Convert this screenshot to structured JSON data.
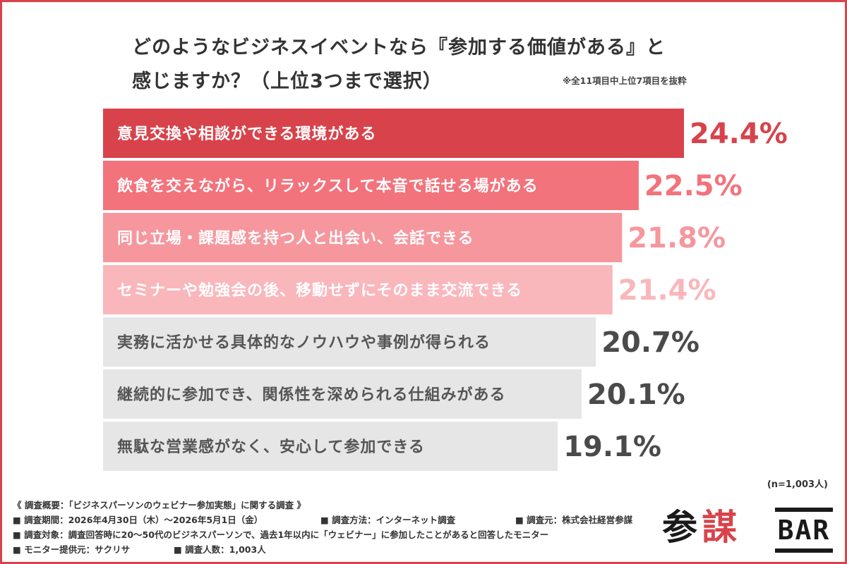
{
  "header": {
    "title_line1": "どのようなビジネスイベントなら『参加する価値がある』と",
    "title_line2": "感じますか？（上位3つまで選択）",
    "note": "※全11項目中上位7項目を抜粋"
  },
  "chart_data": {
    "type": "bar",
    "orientation": "horizontal",
    "categories": [
      "意見交換や相談ができる環境がある",
      "飲食を交えながら、リラックスして本音で話せる場がある",
      "同じ立場・課題感を持つ人と出会い、会話できる",
      "セミナーや勉強会の後、移動せずにそのまま交流できる",
      "実務に活かせる具体的なノウハウや事例が得られる",
      "継続的に参加でき、関係性を深められる仕組みがある",
      "無駄な営業感がなく、安心して参加できる"
    ],
    "values": [
      24.4,
      22.5,
      21.8,
      21.4,
      20.7,
      20.1,
      19.1
    ],
    "value_labels": [
      "24.4%",
      "22.5%",
      "21.8%",
      "21.4%",
      "20.7%",
      "20.1%",
      "19.1%"
    ],
    "bar_colors": [
      "#d8434b",
      "#f2737c",
      "#f6979e",
      "#f9b7bc",
      "#e6e6e6",
      "#e6e6e6",
      "#e6e6e6"
    ],
    "bar_text_colors": [
      "#ffffff",
      "#ffffff",
      "#ffffff",
      "#ffffff",
      "#555555",
      "#555555",
      "#555555"
    ],
    "value_colors": [
      "#d8434b",
      "#f2737c",
      "#f6979e",
      "#f9b7bc",
      "#4a4a4a",
      "#4a4a4a",
      "#4a4a4a"
    ],
    "unit": "%",
    "sample_size": "(n=1,003人)"
  },
  "survey": {
    "heading": "《 調査概要：「ビジネスパーソンのウェビナー参加実態」に関する調査 》",
    "period": "■ 調査期間：2026年4月30日（木）〜2026年5月1日（金）",
    "method": "■ 調査方法：インターネット調査",
    "source": "■ 調査元：株式会社経営参謀",
    "target": "■ 調査対象：調査回答時に20〜50代のビジネスパーソンで、過去1年以内に「ウェビナー」に参加したことがあると回答したモニター",
    "provider": "■ モニター提供元：サクリサ",
    "count": "■ 調査人数：1,003人"
  },
  "logo": {
    "kanji_part1": "参",
    "kanji_part2": "謀",
    "bar_text": "BAR",
    "accent_color": "#d8434b"
  }
}
